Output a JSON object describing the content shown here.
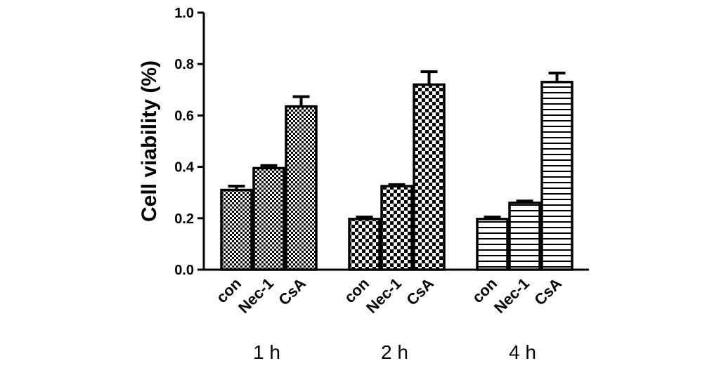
{
  "chart_data": {
    "type": "bar",
    "title": "",
    "ylabel": "Cell viability (%)",
    "xlabel": "",
    "ylim": [
      0,
      1.0
    ],
    "yticks": [
      "0.0",
      "0.2",
      "0.4",
      "0.6",
      "0.8",
      "1.0"
    ],
    "grid": false,
    "groups": [
      {
        "label": "1 h",
        "pattern": "checker-fine",
        "bars": [
          {
            "category": "con",
            "value": 0.31,
            "error": 0.015
          },
          {
            "category": "Nec-1",
            "value": 0.395,
            "error": 0.01
          },
          {
            "category": "CsA",
            "value": 0.635,
            "error": 0.038
          }
        ]
      },
      {
        "label": "2 h",
        "pattern": "checker-coarse",
        "bars": [
          {
            "category": "con",
            "value": 0.197,
            "error": 0.008
          },
          {
            "category": "Nec-1",
            "value": 0.325,
            "error": 0.006
          },
          {
            "category": "CsA",
            "value": 0.72,
            "error": 0.05
          }
        ]
      },
      {
        "label": "4 h",
        "pattern": "horizontal-stripes",
        "bars": [
          {
            "category": "con",
            "value": 0.197,
            "error": 0.008
          },
          {
            "category": "Nec-1",
            "value": 0.26,
            "error": 0.007
          },
          {
            "category": "CsA",
            "value": 0.73,
            "error": 0.035
          }
        ]
      }
    ]
  }
}
